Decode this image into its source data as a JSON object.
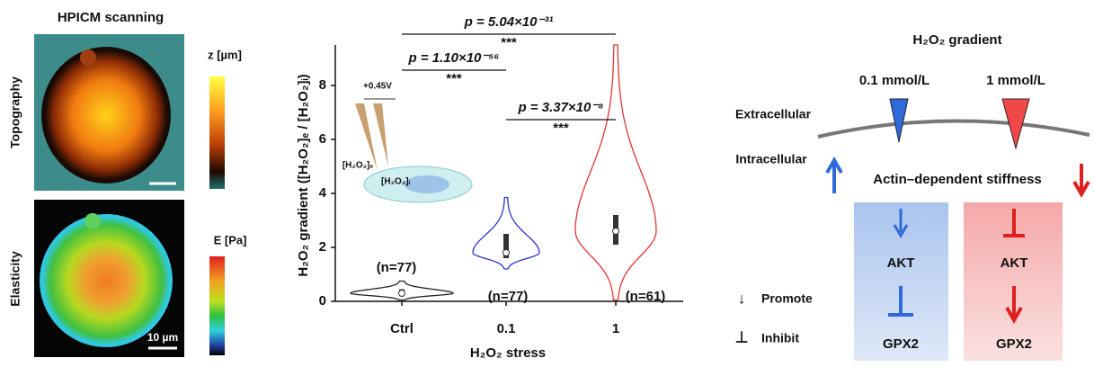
{
  "left_panel": {
    "title": "HPICM scanning",
    "topography": {
      "label": "Topography",
      "colorbar_label": "z [µm]"
    },
    "elasticity": {
      "label": "Elasticity",
      "colorbar_label": "E [Pa]",
      "scale_bar": "10 µm"
    }
  },
  "inset": {
    "voltage": "+0.45V",
    "extracellular": "[H₂O₂]ₑ",
    "intracellular": "[H₂O₂]ᵢ"
  },
  "chart_data": {
    "type": "violin",
    "x_label": "H₂O₂ stress",
    "y_label": "H₂O₂ gradient ([H₂O₂]ₑ / [H₂O₂]ᵢ)",
    "categories": [
      "Ctrl",
      "0.1",
      "1"
    ],
    "ylim": [
      0,
      9.5
    ],
    "yticks": [
      0,
      2,
      4,
      6,
      8
    ],
    "groups": [
      {
        "color": "#222222",
        "min": 0.05,
        "q1": 0.2,
        "median": 0.3,
        "q3": 0.45,
        "max": 0.75,
        "n_label": "(n=77)"
      },
      {
        "color": "#2a35c8",
        "min": 1.2,
        "q1": 1.6,
        "median": 1.8,
        "q3": 2.5,
        "max": 3.85,
        "n_label": "(n=77)"
      },
      {
        "color": "#e03535",
        "min": 0.05,
        "q1": 2.1,
        "median": 2.6,
        "q3": 3.2,
        "max": 9.5,
        "n_label": "(n=61)"
      }
    ],
    "annotations": [
      {
        "text": "p = 5.04×10⁻³¹",
        "stars": "***",
        "pair": [
          0,
          2
        ]
      },
      {
        "text": "p = 1.10×10⁻⁵⁶",
        "stars": "***",
        "pair": [
          0,
          1
        ]
      },
      {
        "text": "p = 3.37×10⁻⁸",
        "stars": "***",
        "pair": [
          1,
          2
        ]
      }
    ]
  },
  "diagram": {
    "title": "H₂O₂ gradient",
    "low": "0.1 mmol/L",
    "high": "1 mmol/L",
    "extracellular": "Extracellular",
    "intracellular": "Intracellular",
    "stiffness": "Actin–dependent stiffness",
    "left_column": [
      "AKT",
      "GPX2"
    ],
    "right_column": [
      "AKT",
      "GPX2"
    ],
    "legend": [
      {
        "symbol": "↓",
        "label": "Promote"
      },
      {
        "symbol": "⊥",
        "label": "Inhibit"
      }
    ]
  }
}
